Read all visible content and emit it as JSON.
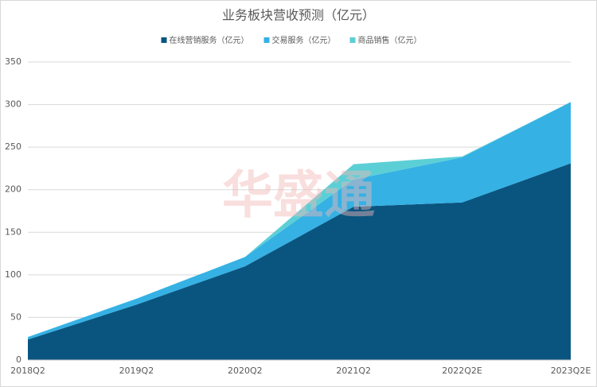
{
  "chart_data": {
    "type": "stacked_area",
    "title": "业务板块营收预测（亿元）",
    "watermark": "华盛通",
    "categories": [
      "2018Q2",
      "2019Q2",
      "2020Q2",
      "2021Q2",
      "2022Q2E",
      "2023Q2E"
    ],
    "series": [
      {
        "name": "在线营销服务（亿元）",
        "color": "#0a5580",
        "values": [
          24,
          65,
          110,
          180,
          185,
          231
        ]
      },
      {
        "name": "交易服务（亿元）",
        "color": "#35b1e4",
        "values": [
          3,
          7,
          11,
          32,
          53,
          72
        ]
      },
      {
        "name": "商品销售（亿元）",
        "color": "#5ccfd6",
        "values": [
          0,
          0,
          0,
          18,
          1,
          0
        ]
      }
    ],
    "ylim": [
      0,
      350
    ],
    "yticks": [
      0,
      50,
      100,
      150,
      200,
      250,
      300,
      350
    ],
    "grid": true,
    "legend": "top"
  }
}
